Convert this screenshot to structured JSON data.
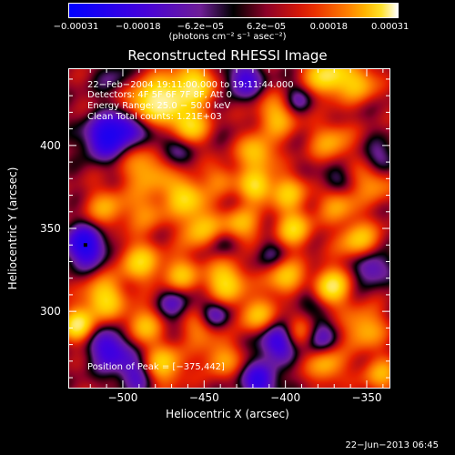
{
  "chart_data": {
    "type": "heatmap",
    "title": "Reconstructed RHESSI Image",
    "xlabel": "Heliocentric X (arcsec)",
    "ylabel": "Heliocentric Y (arcsec)",
    "xlim": [
      -533,
      -336
    ],
    "ylim": [
      254,
      446
    ],
    "x_ticks": [
      -500,
      -450,
      -400,
      -350
    ],
    "x_tick_labels": [
      "−500",
      "−450",
      "−400",
      "−350"
    ],
    "y_ticks": [
      300,
      350,
      400
    ],
    "y_tick_labels": [
      "300",
      "350",
      "400"
    ],
    "colorbar": {
      "range": [
        -0.00031,
        0.00031
      ],
      "tick_values": [
        -0.00031,
        -0.00018,
        -6.2e-05,
        6.2e-05,
        0.00018,
        0.00031
      ],
      "tick_labels": [
        "−0.00031",
        "−0.00018",
        "−6.2e−05",
        "6.2e−05",
        "0.00018",
        "0.00031"
      ],
      "unit_label": "(photons cm⁻² s⁻¹ asec⁻²)"
    },
    "annotations": [
      "22−Feb−2004 19:11:00.000 to 19:11:44.000",
      "Detectors: 4F 5F 6F 7F 8F, Att 0",
      "Energy Range: 25.0 − 50.0 keV",
      "Clean     Total counts: 1.21E+03"
    ],
    "peak_label": "Position of Peak = [−375,442]",
    "peak_position": [
      -375,
      442
    ],
    "marker_position": [
      -523,
      340
    ],
    "blobs": [
      {
        "x": -475,
        "y": 428,
        "v": 1.0,
        "s": 10
      },
      {
        "x": -456,
        "y": 437,
        "v": 0.9,
        "s": 9
      },
      {
        "x": -375,
        "y": 442,
        "v": 1.0,
        "s": 9
      },
      {
        "x": -355,
        "y": 438,
        "v": 0.7,
        "s": 8
      },
      {
        "x": -490,
        "y": 425,
        "v": 0.6,
        "s": 9
      },
      {
        "x": -460,
        "y": 412,
        "v": 0.9,
        "s": 8
      },
      {
        "x": -405,
        "y": 418,
        "v": 0.7,
        "s": 9
      },
      {
        "x": -418,
        "y": 395,
        "v": 0.8,
        "s": 8
      },
      {
        "x": -372,
        "y": 402,
        "v": 0.6,
        "s": 9
      },
      {
        "x": -345,
        "y": 380,
        "v": 0.7,
        "s": 9
      },
      {
        "x": -485,
        "y": 385,
        "v": 0.7,
        "s": 10
      },
      {
        "x": -462,
        "y": 370,
        "v": 0.9,
        "s": 8
      },
      {
        "x": -440,
        "y": 380,
        "v": 0.5,
        "s": 7
      },
      {
        "x": -418,
        "y": 375,
        "v": 0.9,
        "s": 7
      },
      {
        "x": -398,
        "y": 372,
        "v": 0.7,
        "s": 8
      },
      {
        "x": -368,
        "y": 365,
        "v": 0.6,
        "s": 8
      },
      {
        "x": -510,
        "y": 362,
        "v": 0.6,
        "s": 9
      },
      {
        "x": -485,
        "y": 360,
        "v": 0.5,
        "s": 8
      },
      {
        "x": -452,
        "y": 350,
        "v": 0.8,
        "s": 9
      },
      {
        "x": -428,
        "y": 352,
        "v": 0.7,
        "s": 8
      },
      {
        "x": -395,
        "y": 350,
        "v": 0.8,
        "s": 8
      },
      {
        "x": -355,
        "y": 342,
        "v": 0.8,
        "s": 9
      },
      {
        "x": -490,
        "y": 330,
        "v": 0.8,
        "s": 9
      },
      {
        "x": -465,
        "y": 322,
        "v": 0.7,
        "s": 8
      },
      {
        "x": -437,
        "y": 318,
        "v": 0.9,
        "s": 9
      },
      {
        "x": -400,
        "y": 320,
        "v": 0.8,
        "s": 8
      },
      {
        "x": -372,
        "y": 315,
        "v": 1.0,
        "s": 8
      },
      {
        "x": -512,
        "y": 308,
        "v": 0.9,
        "s": 9
      },
      {
        "x": -528,
        "y": 292,
        "v": 1.0,
        "s": 7
      },
      {
        "x": -488,
        "y": 292,
        "v": 0.7,
        "s": 8
      },
      {
        "x": -452,
        "y": 292,
        "v": 0.6,
        "s": 8
      },
      {
        "x": -418,
        "y": 298,
        "v": 0.7,
        "s": 8
      },
      {
        "x": -392,
        "y": 288,
        "v": 0.6,
        "s": 8
      },
      {
        "x": -352,
        "y": 290,
        "v": 0.7,
        "s": 9
      },
      {
        "x": -475,
        "y": 268,
        "v": 0.8,
        "s": 9
      },
      {
        "x": -440,
        "y": 272,
        "v": 0.6,
        "s": 8
      },
      {
        "x": -375,
        "y": 268,
        "v": 0.7,
        "s": 8
      },
      {
        "x": -342,
        "y": 262,
        "v": 0.6,
        "s": 8
      },
      {
        "x": -523,
        "y": 340,
        "v": -1.0,
        "s": 9
      },
      {
        "x": -512,
        "y": 405,
        "v": -0.9,
        "s": 9
      },
      {
        "x": -497,
        "y": 412,
        "v": -0.8,
        "s": 8
      },
      {
        "x": -508,
        "y": 278,
        "v": -0.8,
        "s": 9
      },
      {
        "x": -444,
        "y": 298,
        "v": -0.7,
        "s": 7
      },
      {
        "x": -405,
        "y": 282,
        "v": -0.9,
        "s": 8
      },
      {
        "x": -416,
        "y": 258,
        "v": -0.8,
        "s": 8
      },
      {
        "x": -380,
        "y": 285,
        "v": -0.6,
        "s": 8
      },
      {
        "x": -348,
        "y": 328,
        "v": -0.7,
        "s": 8
      },
      {
        "x": -342,
        "y": 390,
        "v": -0.6,
        "s": 8
      },
      {
        "x": -426,
        "y": 440,
        "v": -0.7,
        "s": 8
      },
      {
        "x": -392,
        "y": 428,
        "v": -0.5,
        "s": 7
      },
      {
        "x": -440,
        "y": 342,
        "v": -0.4,
        "s": 7
      },
      {
        "x": -470,
        "y": 400,
        "v": -0.5,
        "s": 8
      },
      {
        "x": -468,
        "y": 305,
        "v": -0.5,
        "s": 8
      },
      {
        "x": -388,
        "y": 308,
        "v": -0.4,
        "s": 7
      },
      {
        "x": -505,
        "y": 440,
        "v": -0.3,
        "s": 8
      },
      {
        "x": -492,
        "y": 262,
        "v": -0.6,
        "s": 8
      },
      {
        "x": -410,
        "y": 335,
        "v": -0.3,
        "s": 7
      },
      {
        "x": -370,
        "y": 380,
        "v": -0.4,
        "s": 7
      }
    ]
  },
  "footer_date": "22−Jun−2013 06:45"
}
